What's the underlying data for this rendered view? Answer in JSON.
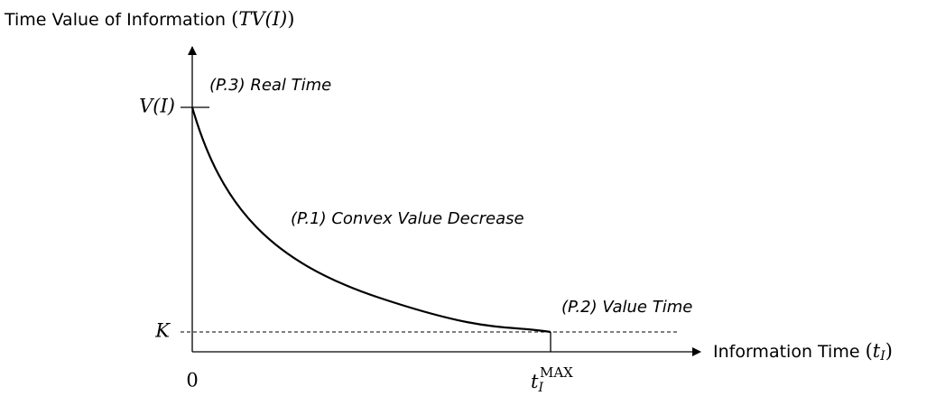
{
  "y_axis": {
    "label": "Time Value of Information",
    "open": "(",
    "symbol": "TV(I)",
    "close": ")"
  },
  "x_axis": {
    "label": "Information Time",
    "open": "(",
    "symbol": "t",
    "subscript": "I",
    "close": ")"
  },
  "ticks": {
    "value": "V(I)",
    "floor": "K",
    "zero": "0",
    "t_max": {
      "base": "t",
      "subscript": "I",
      "superscript": "MAX"
    }
  },
  "annotations": [
    "(P.3) Real Time",
    "(P.1) Convex Value Decrease",
    "(P.2) Value Time"
  ]
}
